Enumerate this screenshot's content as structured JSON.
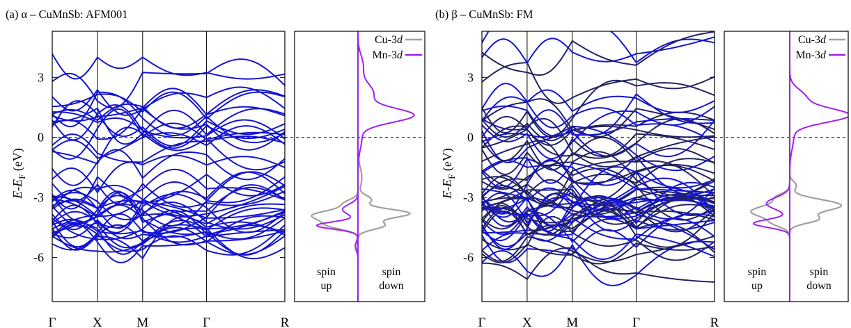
{
  "chart_data": [
    {
      "type": "line",
      "title": "(a) α – CuMnSb: AFM001",
      "ylabel": "E-E_F (eV)",
      "ylabel_main": "E-E",
      "ylabel_sub": "F",
      "ylabel_unit": " (eV)",
      "ylim": [
        -8.2,
        5.3
      ],
      "yticks": [
        {
          "v": 3,
          "label": "3"
        },
        {
          "v": 0,
          "label": "0"
        },
        {
          "v": -3,
          "label": "-3"
        },
        {
          "v": -6,
          "label": "-6"
        }
      ],
      "kpoints": [
        {
          "x": 0,
          "label": "Γ"
        },
        {
          "x": 1,
          "label": "X"
        },
        {
          "x": 2,
          "label": "M"
        },
        {
          "x": 3.414,
          "label": "Γ"
        },
        {
          "x": 5.146,
          "label": "R"
        }
      ],
      "band_color": "#1414d2",
      "dos": {
        "series": [
          {
            "name": "Cu-3d",
            "color": "#a0a0a0"
          },
          {
            "name": "Mn-3d",
            "color": "#a020f0"
          }
        ],
        "spin_up_label": [
          "spin",
          "up"
        ],
        "spin_down_label": [
          "spin",
          "down"
        ]
      }
    },
    {
      "type": "line",
      "title": "(b) β – CuMnSb: FM",
      "ylabel": "E-E_F (eV)",
      "ylabel_main": "E-E",
      "ylabel_sub": "F",
      "ylabel_unit": " (eV)",
      "ylim": [
        -8.2,
        5.3
      ],
      "yticks": [
        {
          "v": 3,
          "label": "3"
        },
        {
          "v": 0,
          "label": "0"
        },
        {
          "v": -3,
          "label": "-3"
        },
        {
          "v": -6,
          "label": "-6"
        }
      ],
      "kpoints": [
        {
          "x": 0,
          "label": "Γ"
        },
        {
          "x": 1,
          "label": "X"
        },
        {
          "x": 2,
          "label": "M"
        },
        {
          "x": 3.414,
          "label": "Γ"
        },
        {
          "x": 5.146,
          "label": "R"
        }
      ],
      "band_colors": [
        "#1414d2",
        "#232360"
      ],
      "dos": {
        "series": [
          {
            "name": "Cu-3d",
            "color": "#a0a0a0"
          },
          {
            "name": "Mn-3d",
            "color": "#a020f0"
          }
        ],
        "spin_up_label": [
          "spin",
          "up"
        ],
        "spin_down_label": [
          "spin",
          "down"
        ]
      }
    }
  ]
}
